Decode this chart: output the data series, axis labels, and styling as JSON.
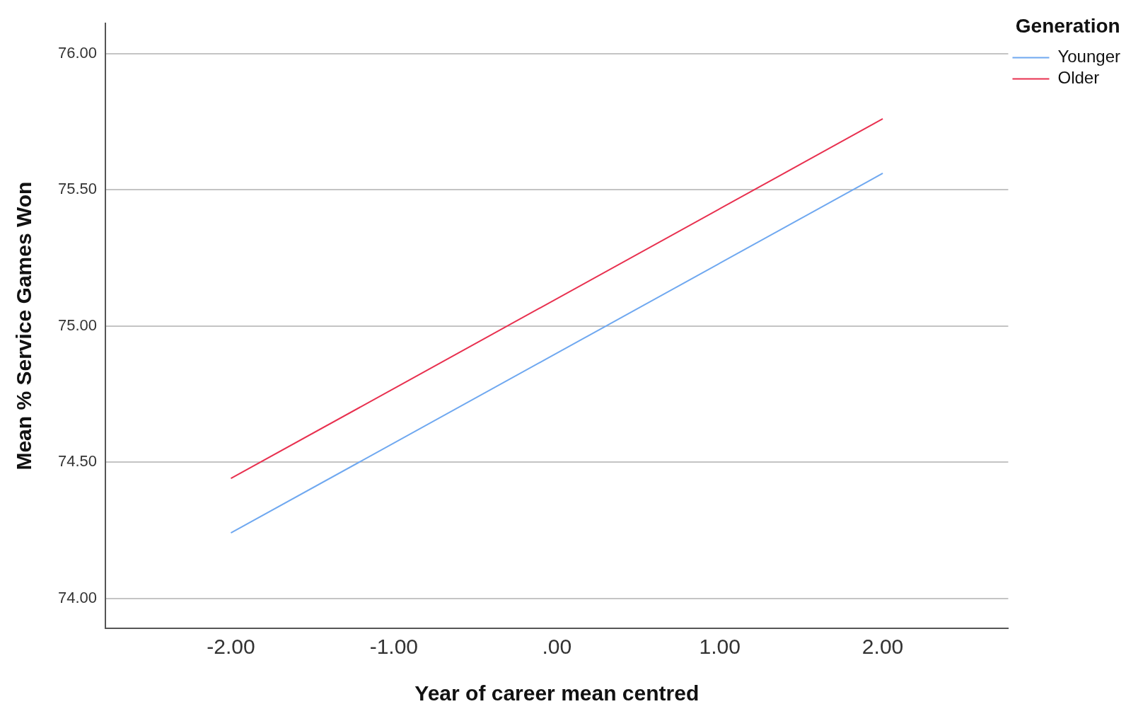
{
  "chart_data": {
    "type": "line",
    "xlabel": "Year of career mean centred",
    "ylabel": "Mean % Service Games Won",
    "legend_title": "Generation",
    "x": [
      -2,
      2
    ],
    "series": [
      {
        "name": "Younger",
        "color": "#6fa8f0",
        "values": [
          74.24,
          75.56
        ]
      },
      {
        "name": "Older",
        "color": "#e8304f",
        "values": [
          74.44,
          75.76
        ]
      }
    ],
    "xlim": [
      -2.77,
      2.77
    ],
    "xticks": [
      {
        "value": -2,
        "label": "-2.00"
      },
      {
        "value": -1,
        "label": "-1.00"
      },
      {
        "value": 0,
        "label": ".00"
      },
      {
        "value": 1,
        "label": "1.00"
      },
      {
        "value": 2,
        "label": "2.00"
      }
    ],
    "ylim": [
      73.89,
      76.11
    ],
    "yticks": [
      {
        "value": 74,
        "label": "74.00"
      },
      {
        "value": 74.5,
        "label": "74.50"
      },
      {
        "value": 75,
        "label": "75.00"
      },
      {
        "value": 75.5,
        "label": "75.50"
      },
      {
        "value": 76,
        "label": "76.00"
      }
    ],
    "grid": "y",
    "legend": "top right",
    "marker": "none",
    "line_style": "solid"
  }
}
